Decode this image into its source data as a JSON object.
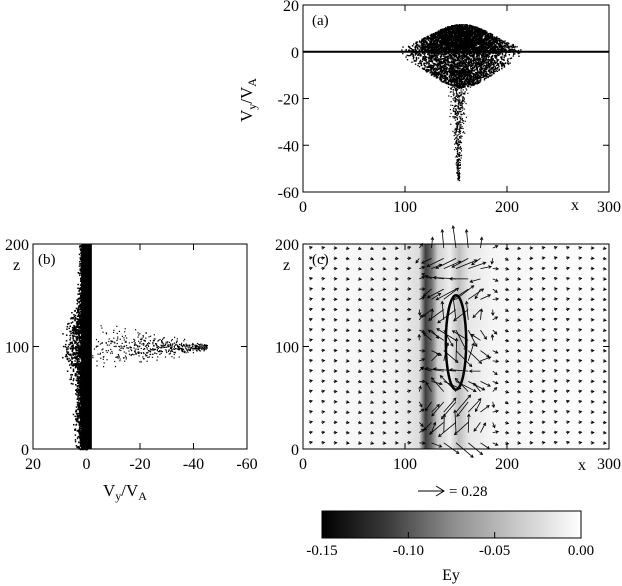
{
  "chart_data": [
    {
      "panel_label": "(a)",
      "type": "scatter",
      "xlabel": "x",
      "ylabel_main": "V",
      "ylabel_sub1": "y",
      "ylabel_sep": "/V",
      "ylabel_sub2": "A",
      "xlim": [
        0,
        300
      ],
      "ylim": [
        -60,
        20
      ],
      "xticks": [
        0,
        100,
        200,
        300
      ],
      "yticks": [
        20,
        0,
        -20,
        -40,
        -60
      ],
      "distribution": {
        "baseline_y": 0,
        "bulge_center_x": 155,
        "bulge_halfwidth_x": 45,
        "bulge_max_y": 12,
        "bulge_min_y": -15,
        "tail_center_x": 152,
        "tail_min_y": -55
      }
    },
    {
      "panel_label": "(b)",
      "type": "scatter",
      "xlabel_main": "V",
      "xlabel_sub1": "y",
      "xlabel_sep": "/V",
      "xlabel_sub2": "A",
      "ylabel": "z",
      "xlim": [
        20,
        -60
      ],
      "ylim": [
        0,
        200
      ],
      "xticks": [
        20,
        0,
        -20,
        -40,
        -60
      ],
      "yticks": [
        0,
        100,
        200
      ],
      "distribution": {
        "core_vy_range": [
          -2,
          2
        ],
        "spread_center_z": 100,
        "spread_min_vy": -45,
        "positive_lobe_max_vy": 12
      }
    },
    {
      "panel_label": "(c)",
      "type": "heatmap",
      "xlabel": "x",
      "ylabel": "z",
      "xlim": [
        0,
        300
      ],
      "ylim": [
        0,
        200
      ],
      "xticks": [
        0,
        100,
        200,
        300
      ],
      "yticks": [
        0,
        100,
        200
      ],
      "field": {
        "dark_band_x": 130,
        "dark_band_halfwidth": 6,
        "second_band_x": 162,
        "vortex_center": [
          150,
          104
        ],
        "ellipse_semi_axes": [
          10,
          46
        ],
        "arrow_grid_dx": 12,
        "arrow_grid_dz": 10
      },
      "reference_arrow_label": "= 0.28",
      "colorbar": {
        "label": "Ey",
        "min": -0.15,
        "max": 0.0,
        "ticks": [
          "-0.15",
          "-0.10",
          "-0.05",
          "0.00"
        ],
        "color_min": "#000000",
        "color_max": "#ffffff"
      }
    }
  ]
}
